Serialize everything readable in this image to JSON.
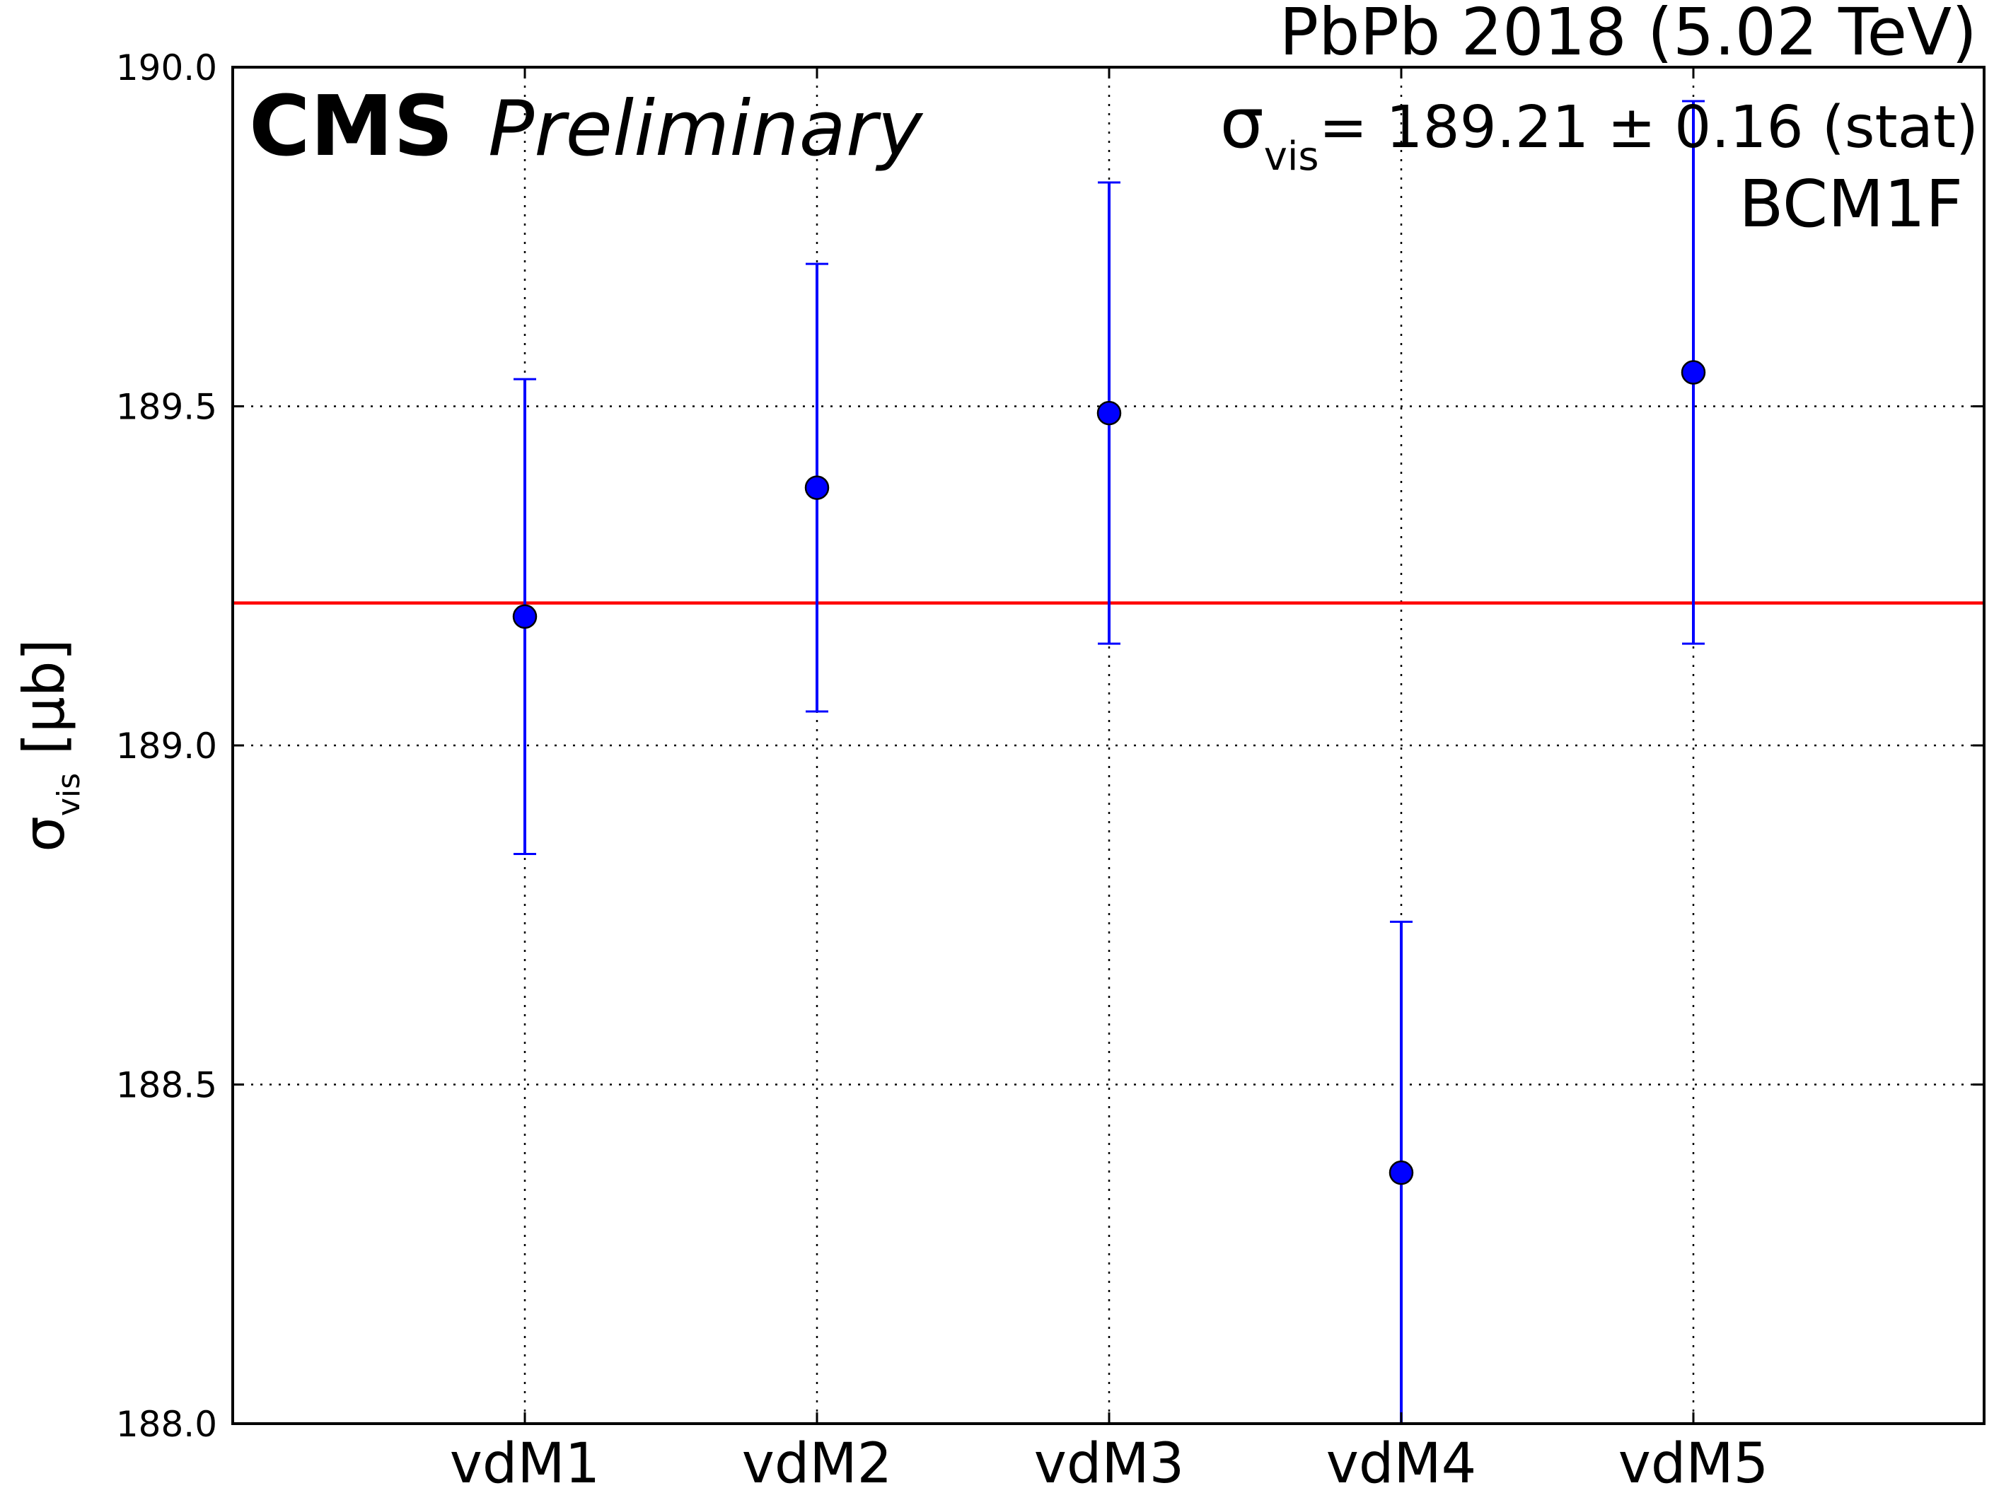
{
  "chart_data": {
    "type": "scatter",
    "title": "",
    "experiment": "CMS",
    "status": "Preliminary",
    "dataset": "PbPb 2018 (5.02 TeV)",
    "result": {
      "symbol": "σ",
      "subscript": "vis",
      "text": "= 189.21 ± 0.16 (stat)",
      "value": 189.21
    },
    "detector": "BCM1F",
    "ylabel": {
      "symbol": "σ",
      "subscript": "vis",
      "unit": " [μb]"
    },
    "xlabel": "",
    "ylim": [
      188.0,
      190.0
    ],
    "yticks": [
      "188.0",
      "188.5",
      "189.0",
      "189.5",
      "190.0"
    ],
    "categories": [
      "vdM1",
      "vdM2",
      "vdM3",
      "vdM4",
      "vdM5"
    ],
    "series": [
      {
        "values": [
          189.19,
          189.38,
          189.49,
          188.37,
          189.55
        ],
        "errors": [
          0.35,
          0.33,
          0.34,
          0.37,
          0.4
        ],
        "color": "#0000ff"
      }
    ],
    "reference_line": {
      "value": 189.21,
      "color": "#ff0000"
    },
    "grid": true
  }
}
